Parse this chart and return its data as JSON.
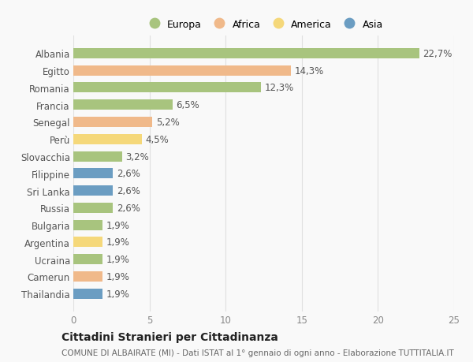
{
  "countries": [
    "Albania",
    "Egitto",
    "Romania",
    "Francia",
    "Senegal",
    "Perù",
    "Slovacchia",
    "Filippine",
    "Sri Lanka",
    "Russia",
    "Bulgaria",
    "Argentina",
    "Ucraina",
    "Camerun",
    "Thailandia"
  ],
  "values": [
    22.7,
    14.3,
    12.3,
    6.5,
    5.2,
    4.5,
    3.2,
    2.6,
    2.6,
    2.6,
    1.9,
    1.9,
    1.9,
    1.9,
    1.9
  ],
  "labels": [
    "22,7%",
    "14,3%",
    "12,3%",
    "6,5%",
    "5,2%",
    "4,5%",
    "3,2%",
    "2,6%",
    "2,6%",
    "2,6%",
    "1,9%",
    "1,9%",
    "1,9%",
    "1,9%",
    "1,9%"
  ],
  "continents": [
    "Europa",
    "Africa",
    "Europa",
    "Europa",
    "Africa",
    "America",
    "Europa",
    "Asia",
    "Asia",
    "Europa",
    "Europa",
    "America",
    "Europa",
    "Africa",
    "Asia"
  ],
  "colors": {
    "Europa": "#a8c47e",
    "Africa": "#f0b98a",
    "America": "#f5d87a",
    "Asia": "#6b9dc2"
  },
  "legend_order": [
    "Europa",
    "Africa",
    "America",
    "Asia"
  ],
  "title": "Cittadini Stranieri per Cittadinanza",
  "subtitle": "COMUNE DI ALBAIRATE (MI) - Dati ISTAT al 1° gennaio di ogni anno - Elaborazione TUTTITALIA.IT",
  "xlim": [
    0,
    25
  ],
  "xticks": [
    0,
    5,
    10,
    15,
    20,
    25
  ],
  "background_color": "#f9f9f9",
  "grid_color": "#e0e0e0",
  "bar_height": 0.6,
  "label_fontsize": 8.5,
  "tick_fontsize": 8.5,
  "title_fontsize": 10,
  "subtitle_fontsize": 7.5,
  "legend_fontsize": 9
}
